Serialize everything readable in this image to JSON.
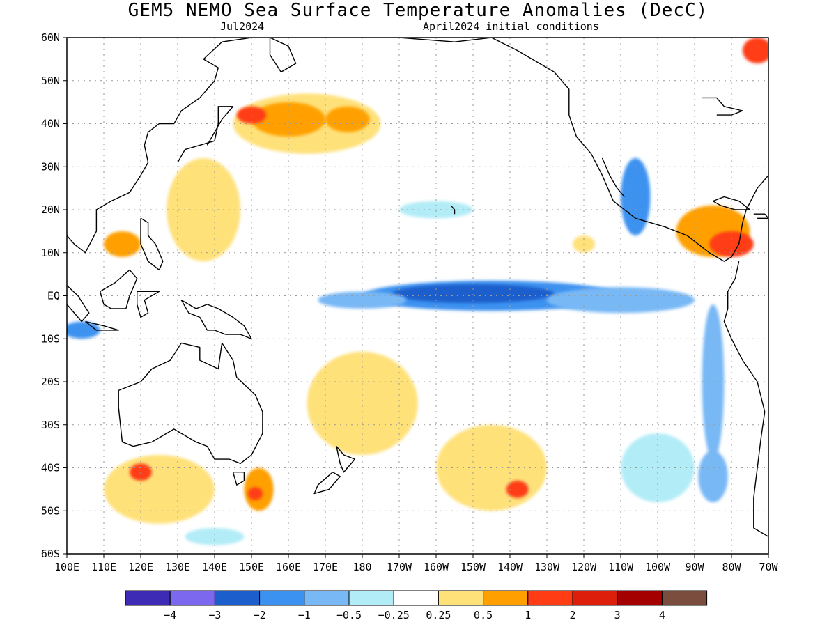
{
  "title": "GEM5_NEMO Sea Surface Temperature Anomalies (DecC)",
  "subtitle_left": "Jul2024",
  "subtitle_right": "April2024 initial conditions",
  "map": {
    "lon_range": [
      100,
      290
    ],
    "lat_range": [
      -60,
      60
    ],
    "grid": true,
    "lon_ticks": [
      {
        "lon": 100,
        "label": "100E"
      },
      {
        "lon": 110,
        "label": "110E"
      },
      {
        "lon": 120,
        "label": "120E"
      },
      {
        "lon": 130,
        "label": "130E"
      },
      {
        "lon": 140,
        "label": "140E"
      },
      {
        "lon": 150,
        "label": "150E"
      },
      {
        "lon": 160,
        "label": "160E"
      },
      {
        "lon": 170,
        "label": "170E"
      },
      {
        "lon": 180,
        "label": "180"
      },
      {
        "lon": 190,
        "label": "170W"
      },
      {
        "lon": 200,
        "label": "160W"
      },
      {
        "lon": 210,
        "label": "150W"
      },
      {
        "lon": 220,
        "label": "140W"
      },
      {
        "lon": 230,
        "label": "130W"
      },
      {
        "lon": 240,
        "label": "120W"
      },
      {
        "lon": 250,
        "label": "110W"
      },
      {
        "lon": 260,
        "label": "100W"
      },
      {
        "lon": 270,
        "label": "90W"
      },
      {
        "lon": 280,
        "label": "80W"
      },
      {
        "lon": 290,
        "label": "70W"
      }
    ],
    "lat_ticks": [
      {
        "lat": 60,
        "label": "60N"
      },
      {
        "lat": 50,
        "label": "50N"
      },
      {
        "lat": 40,
        "label": "40N"
      },
      {
        "lat": 30,
        "label": "30N"
      },
      {
        "lat": 20,
        "label": "20N"
      },
      {
        "lat": 10,
        "label": "10N"
      },
      {
        "lat": 0,
        "label": "EQ"
      },
      {
        "lat": -10,
        "label": "10S"
      },
      {
        "lat": -20,
        "label": "20S"
      },
      {
        "lat": -30,
        "label": "30S"
      },
      {
        "lat": -40,
        "label": "40S"
      },
      {
        "lat": -50,
        "label": "50S"
      },
      {
        "lat": -60,
        "label": "60S"
      }
    ]
  },
  "colorbar": {
    "colors": [
      "#3d2bb5",
      "#7b68ee",
      "#1c5fcc",
      "#3c92f0",
      "#78b8f5",
      "#b2ecf7",
      "#ffffff",
      "#ffe17a",
      "#ffa000",
      "#ff3c14",
      "#dc1e0a",
      "#a50000",
      "#7b4d3f"
    ],
    "labels": [
      "−4",
      "−3",
      "−2",
      "−1",
      "−0.5",
      "−0.25",
      "0.25",
      "0.5",
      "1",
      "2",
      "3",
      "4"
    ]
  },
  "anomalies": [
    {
      "lon": 215,
      "lat": 0,
      "rx": 35,
      "ry": 3.5,
      "level": -1
    },
    {
      "lon": 210,
      "lat": 0.5,
      "rx": 22,
      "ry": 2.2,
      "level": -2
    },
    {
      "lon": 180,
      "lat": -1,
      "rx": 12,
      "ry": 2,
      "level": -0.5
    },
    {
      "lon": 250,
      "lat": -1,
      "rx": 20,
      "ry": 3,
      "level": -0.5
    },
    {
      "lon": 254,
      "lat": 23,
      "rx": 4,
      "ry": 9,
      "level": -1
    },
    {
      "lon": 275,
      "lat": -20,
      "rx": 3,
      "ry": 18,
      "level": -0.5
    },
    {
      "lon": 104,
      "lat": -8,
      "rx": 5,
      "ry": 2,
      "level": -1
    },
    {
      "lon": 200,
      "lat": 20,
      "rx": 10,
      "ry": 2,
      "level": -0.25
    },
    {
      "lon": 165,
      "lat": 40,
      "rx": 20,
      "ry": 7,
      "level": 0.5
    },
    {
      "lon": 160,
      "lat": 41,
      "rx": 10,
      "ry": 4,
      "level": 1
    },
    {
      "lon": 150,
      "lat": 42,
      "rx": 4,
      "ry": 2,
      "level": 2
    },
    {
      "lon": 176,
      "lat": 41,
      "rx": 6,
      "ry": 3,
      "level": 1
    },
    {
      "lon": 137,
      "lat": 20,
      "rx": 10,
      "ry": 12,
      "level": 0.5
    },
    {
      "lon": 115,
      "lat": 12,
      "rx": 5,
      "ry": 3,
      "level": 1
    },
    {
      "lon": 275,
      "lat": 15,
      "rx": 10,
      "ry": 6,
      "level": 1
    },
    {
      "lon": 280,
      "lat": 12,
      "rx": 6,
      "ry": 3,
      "level": 2
    },
    {
      "lon": 287,
      "lat": 57,
      "rx": 4,
      "ry": 3,
      "level": 2
    },
    {
      "lon": 180,
      "lat": -25,
      "rx": 15,
      "ry": 12,
      "level": 0.5
    },
    {
      "lon": 215,
      "lat": -40,
      "rx": 15,
      "ry": 10,
      "level": 0.5
    },
    {
      "lon": 222,
      "lat": -45,
      "rx": 3,
      "ry": 2,
      "level": 2
    },
    {
      "lon": 125,
      "lat": -45,
      "rx": 15,
      "ry": 8,
      "level": 0.5
    },
    {
      "lon": 120,
      "lat": -41,
      "rx": 3,
      "ry": 2,
      "level": 2
    },
    {
      "lon": 152,
      "lat": -45,
      "rx": 4,
      "ry": 5,
      "level": 1
    },
    {
      "lon": 151,
      "lat": -46,
      "rx": 2,
      "ry": 1.5,
      "level": 2
    },
    {
      "lon": 140,
      "lat": -56,
      "rx": 8,
      "ry": 2,
      "level": -0.25
    },
    {
      "lon": 260,
      "lat": -40,
      "rx": 10,
      "ry": 8,
      "level": -0.25
    },
    {
      "lon": 275,
      "lat": -42,
      "rx": 4,
      "ry": 6,
      "level": -0.5
    },
    {
      "lon": 240,
      "lat": 12,
      "rx": 3,
      "ry": 2,
      "level": 0.5
    }
  ],
  "coastlines": [
    {
      "name": "north-america",
      "points": [
        [
          190,
          60
        ],
        [
          205,
          59
        ],
        [
          215,
          60
        ],
        [
          222,
          57
        ],
        [
          232,
          52
        ],
        [
          236,
          48
        ],
        [
          236,
          42
        ],
        [
          238,
          37
        ],
        [
          242,
          33
        ],
        [
          245,
          28
        ],
        [
          248,
          22
        ],
        [
          254,
          18
        ],
        [
          262,
          16
        ],
        [
          268,
          14
        ],
        [
          274,
          10
        ],
        [
          278,
          8
        ],
        [
          280,
          9
        ],
        [
          282,
          12
        ],
        [
          283,
          17
        ],
        [
          284,
          20
        ],
        [
          287,
          25
        ],
        [
          290,
          28
        ]
      ]
    },
    {
      "name": "gulf-of-california",
      "points": [
        [
          245,
          32
        ],
        [
          247,
          28
        ],
        [
          249,
          25
        ],
        [
          251,
          23
        ]
      ]
    },
    {
      "name": "south-america",
      "points": [
        [
          282,
          8
        ],
        [
          281,
          4
        ],
        [
          279,
          1
        ],
        [
          279,
          -3
        ],
        [
          278,
          -6
        ],
        [
          280,
          -10
        ],
        [
          283,
          -15
        ],
        [
          287,
          -20
        ],
        [
          289,
          -27
        ],
        [
          288,
          -33
        ],
        [
          287,
          -40
        ],
        [
          286,
          -47
        ],
        [
          286,
          -54
        ],
        [
          290,
          -56
        ]
      ]
    },
    {
      "name": "east-asia",
      "points": [
        [
          100,
          14
        ],
        [
          102,
          12
        ],
        [
          105,
          10
        ],
        [
          108,
          15
        ],
        [
          108,
          20
        ],
        [
          112,
          22
        ],
        [
          117,
          24
        ],
        [
          120,
          28
        ],
        [
          122,
          31
        ],
        [
          121,
          35
        ],
        [
          122,
          38
        ],
        [
          125,
          40
        ],
        [
          129,
          40
        ],
        [
          131,
          43
        ],
        [
          136,
          46
        ],
        [
          140,
          50
        ],
        [
          141,
          53
        ],
        [
          137,
          55
        ],
        [
          142,
          59
        ],
        [
          150,
          60
        ]
      ]
    },
    {
      "name": "kamchatka",
      "points": [
        [
          155,
          60
        ],
        [
          160,
          58
        ],
        [
          162,
          54
        ],
        [
          158,
          52
        ],
        [
          155,
          56
        ],
        [
          155,
          60
        ]
      ]
    },
    {
      "name": "japan",
      "points": [
        [
          130,
          31
        ],
        [
          132,
          34
        ],
        [
          136,
          35
        ],
        [
          140,
          36
        ],
        [
          141,
          40
        ],
        [
          141,
          44
        ],
        [
          145,
          44
        ],
        [
          142,
          41
        ],
        [
          140,
          38
        ],
        [
          138,
          35
        ]
      ]
    },
    {
      "name": "philippines",
      "points": [
        [
          120,
          18
        ],
        [
          122,
          17
        ],
        [
          122,
          14
        ],
        [
          124,
          12
        ],
        [
          126,
          8
        ],
        [
          125,
          6
        ],
        [
          122,
          8
        ],
        [
          120,
          12
        ],
        [
          120,
          18
        ]
      ]
    },
    {
      "name": "borneo",
      "points": [
        [
          109,
          1
        ],
        [
          113,
          3
        ],
        [
          117,
          6
        ],
        [
          119,
          4
        ],
        [
          117,
          0
        ],
        [
          116,
          -3
        ],
        [
          112,
          -3
        ],
        [
          110,
          -2
        ],
        [
          109,
          1
        ]
      ]
    },
    {
      "name": "sumatra",
      "points": [
        [
          95,
          5
        ],
        [
          98,
          4
        ],
        [
          103,
          0
        ],
        [
          106,
          -4
        ],
        [
          104,
          -6
        ],
        [
          101,
          -3
        ],
        [
          97,
          1
        ]
      ]
    },
    {
      "name": "java",
      "points": [
        [
          105,
          -6
        ],
        [
          110,
          -7
        ],
        [
          114,
          -8
        ],
        [
          108,
          -8
        ],
        [
          105,
          -6
        ]
      ]
    },
    {
      "name": "sulawesi",
      "points": [
        [
          119,
          1
        ],
        [
          121,
          1
        ],
        [
          125,
          1
        ],
        [
          121,
          -1
        ],
        [
          122,
          -4
        ],
        [
          120,
          -5
        ],
        [
          119,
          -2
        ],
        [
          119,
          1
        ]
      ]
    },
    {
      "name": "new-guinea",
      "points": [
        [
          131,
          -1
        ],
        [
          135,
          -3
        ],
        [
          138,
          -2
        ],
        [
          141,
          -3
        ],
        [
          145,
          -5
        ],
        [
          148,
          -7
        ],
        [
          150,
          -10
        ],
        [
          147,
          -9
        ],
        [
          143,
          -9
        ],
        [
          140,
          -8
        ],
        [
          138,
          -8
        ],
        [
          136,
          -5
        ],
        [
          133,
          -4
        ],
        [
          131,
          -1
        ]
      ]
    },
    {
      "name": "australia",
      "points": [
        [
          114,
          -22
        ],
        [
          114,
          -26
        ],
        [
          115,
          -34
        ],
        [
          118,
          -35
        ],
        [
          123,
          -34
        ],
        [
          129,
          -31
        ],
        [
          135,
          -34
        ],
        [
          138,
          -35
        ],
        [
          140,
          -38
        ],
        [
          144,
          -38
        ],
        [
          147,
          -39
        ],
        [
          150,
          -37
        ],
        [
          153,
          -32
        ],
        [
          153,
          -27
        ],
        [
          151,
          -23
        ],
        [
          146,
          -19
        ],
        [
          145,
          -15
        ],
        [
          142,
          -11
        ],
        [
          141,
          -17
        ],
        [
          136,
          -15
        ],
        [
          136,
          -12
        ],
        [
          131,
          -11
        ],
        [
          128,
          -15
        ],
        [
          123,
          -17
        ],
        [
          120,
          -20
        ],
        [
          114,
          -22
        ]
      ]
    },
    {
      "name": "tasmania",
      "points": [
        [
          145,
          -41
        ],
        [
          148,
          -41
        ],
        [
          148,
          -43
        ],
        [
          146,
          -44
        ],
        [
          145,
          -41
        ]
      ]
    },
    {
      "name": "new-zealand-north",
      "points": [
        [
          173,
          -35
        ],
        [
          175,
          -37
        ],
        [
          178,
          -38
        ],
        [
          176,
          -40
        ],
        [
          175,
          -41
        ],
        [
          174,
          -39
        ],
        [
          173,
          -35
        ]
      ]
    },
    {
      "name": "new-zealand-south",
      "points": [
        [
          172,
          -41
        ],
        [
          174,
          -42
        ],
        [
          171,
          -45
        ],
        [
          167,
          -46
        ],
        [
          168,
          -44
        ],
        [
          172,
          -41
        ]
      ]
    },
    {
      "name": "cuba",
      "points": [
        [
          275,
          22
        ],
        [
          278,
          23
        ],
        [
          282,
          22
        ],
        [
          285,
          20
        ],
        [
          281,
          20
        ],
        [
          277,
          21
        ],
        [
          275,
          22
        ]
      ]
    },
    {
      "name": "hispaniola",
      "points": [
        [
          286,
          19
        ],
        [
          289,
          19
        ],
        [
          290,
          18
        ],
        [
          287,
          18
        ]
      ]
    },
    {
      "name": "hawaii",
      "points": [
        [
          204,
          21
        ],
        [
          205,
          20
        ],
        [
          205,
          19
        ]
      ]
    },
    {
      "name": "great-lakes",
      "points": [
        [
          272,
          46
        ],
        [
          276,
          46
        ],
        [
          278,
          44
        ],
        [
          283,
          43
        ],
        [
          280,
          42
        ],
        [
          276,
          42
        ]
      ]
    }
  ]
}
